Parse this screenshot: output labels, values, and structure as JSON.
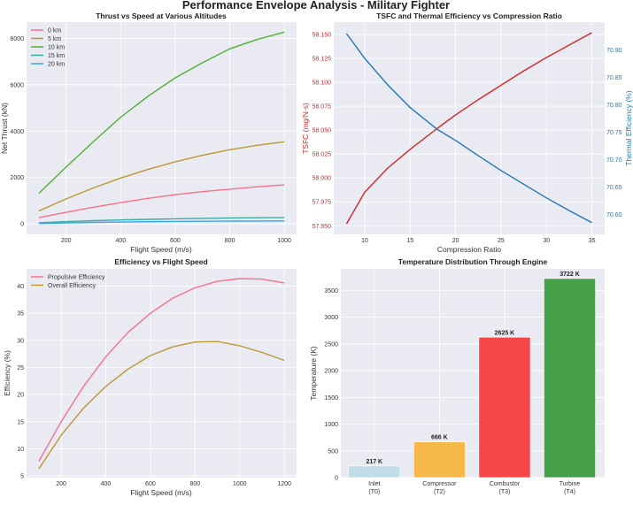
{
  "title": "Performance Envelope Analysis - Military Fighter",
  "chart_data": [
    {
      "type": "line",
      "title": "Thrust vs Speed at Various Altitudes",
      "xlabel": "Flight Speed (m/s)",
      "ylabel": "Net Thrust (kN)",
      "xlim": [
        55,
        1045
      ],
      "ylim": [
        -450,
        8700
      ],
      "xticks": [
        200,
        400,
        600,
        800,
        1000
      ],
      "yticks": [
        0,
        2000,
        4000,
        6000,
        8000
      ],
      "grid": true,
      "legend": "top-left",
      "x": [
        100,
        200,
        300,
        400,
        500,
        600,
        700,
        800,
        900,
        1000
      ],
      "series": [
        {
          "name": "0 km",
          "color": "#f77189",
          "values": [
            270,
            500,
            720,
            920,
            1100,
            1260,
            1390,
            1500,
            1600,
            1680
          ]
        },
        {
          "name": "5 km",
          "color": "#bb9832",
          "values": [
            560,
            1080,
            1550,
            1980,
            2350,
            2680,
            2960,
            3200,
            3390,
            3540
          ]
        },
        {
          "name": "10 km",
          "color": "#50b131",
          "values": [
            1320,
            2450,
            3550,
            4600,
            5500,
            6300,
            6950,
            7550,
            7950,
            8270
          ]
        },
        {
          "name": "15 km",
          "color": "#36ada4",
          "values": [
            50,
            100,
            140,
            170,
            200,
            220,
            240,
            255,
            265,
            270
          ]
        },
        {
          "name": "20 km",
          "color": "#3ba3ec",
          "values": [
            20,
            45,
            65,
            80,
            95,
            105,
            115,
            120,
            125,
            130
          ]
        }
      ]
    },
    {
      "type": "line",
      "title": "TSFC and Thermal Efficiency vs Compression Ratio",
      "xlabel": "Compression Ratio",
      "ylabel": "TSFC (mg/N·s)",
      "ylabel_right": "Thermal Efficiency (%)",
      "xlim": [
        6.6,
        36.4
      ],
      "ylim": [
        57.941,
        58.163
      ],
      "ylim_right": [
        70.5635,
        70.951
      ],
      "xticks": [
        10,
        15,
        20,
        25,
        30,
        35
      ],
      "yticks": [
        "57.950",
        "57.975",
        "58.000",
        "58.025",
        "58.050",
        "58.075",
        "58.100",
        "58.125",
        "58.150"
      ],
      "yticks_right": [
        "70.60",
        "70.65",
        "70.70",
        "70.75",
        "70.80",
        "70.85",
        "70.90"
      ],
      "grid": true,
      "x": [
        8,
        10,
        12.5,
        15,
        18,
        20,
        22.5,
        25,
        27.5,
        30,
        32.5,
        35
      ],
      "series": [
        {
          "axis": "left",
          "color": "#d62728",
          "values": [
            57.952,
            57.985,
            58.01,
            58.03,
            58.052,
            58.066,
            58.082,
            58.097,
            58.112,
            58.126,
            58.139,
            58.152
          ]
        },
        {
          "axis": "right",
          "color": "#1f77b4",
          "values": [
            70.93,
            70.885,
            70.837,
            70.795,
            70.755,
            70.735,
            70.707,
            70.68,
            70.655,
            70.63,
            70.607,
            70.585
          ]
        }
      ]
    },
    {
      "type": "line",
      "title": "Efficiency vs Flight Speed",
      "xlabel": "Flight Speed (m/s)",
      "ylabel": "Efficiency (%)",
      "xlim": [
        45,
        1255
      ],
      "ylim": [
        4.68,
        43.2
      ],
      "xticks": [
        200,
        400,
        600,
        800,
        1000,
        1200
      ],
      "yticks": [
        5,
        10,
        15,
        20,
        25,
        30,
        35,
        40
      ],
      "grid": true,
      "legend": "top-left",
      "x": [
        100,
        200,
        300,
        400,
        500,
        600,
        700,
        800,
        900,
        1000,
        1100,
        1200
      ],
      "series": [
        {
          "name": "Propulsive Efficiency",
          "color": "#f77189",
          "values": [
            7.7,
            15.0,
            21.5,
            27.0,
            31.5,
            35.0,
            37.8,
            39.7,
            40.9,
            41.4,
            41.3,
            40.6
          ]
        },
        {
          "name": "Overall Efficiency",
          "color": "#bb9832",
          "values": [
            6.3,
            12.5,
            17.5,
            21.5,
            24.7,
            27.2,
            28.8,
            29.7,
            29.8,
            29.0,
            27.8,
            26.3
          ]
        }
      ]
    },
    {
      "type": "bar",
      "title": "Temperature Distribution Through Engine",
      "xlabel": "",
      "ylabel": "Temperature (K)",
      "ylim": [
        0,
        3903
      ],
      "yticks": [
        0,
        500,
        1000,
        1500,
        2000,
        2500,
        3000,
        3500
      ],
      "grid": true,
      "categories": [
        [
          "Inlet",
          "(T0)"
        ],
        [
          "Compressor",
          "(T2)"
        ],
        [
          "Combustor",
          "(T3)"
        ],
        [
          "Turbine",
          "(T4)"
        ]
      ],
      "values": [
        217,
        666,
        2625,
        3722
      ],
      "data_labels": [
        "217 K",
        "666 K",
        "2625 K",
        "3722 K"
      ],
      "colors": [
        "#c0dde8",
        "#f7b84a",
        "#f54649",
        "#45a048"
      ]
    }
  ]
}
